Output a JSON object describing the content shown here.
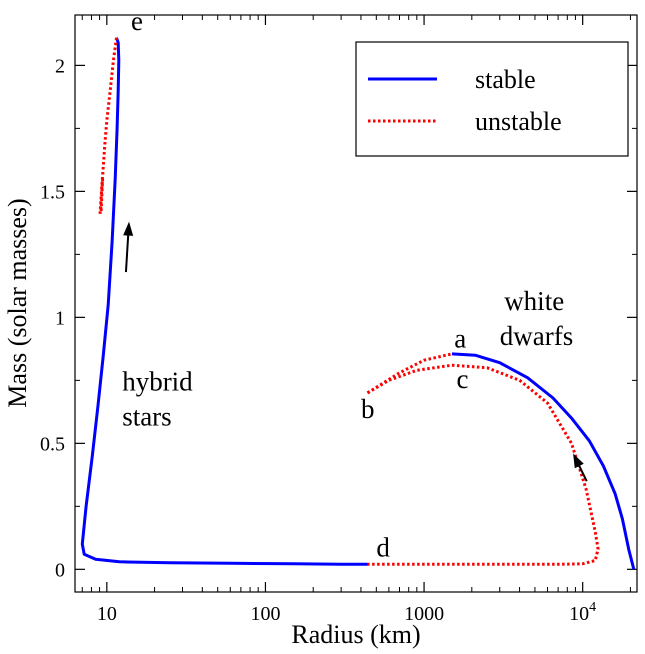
{
  "chart_data": {
    "type": "line",
    "title": "",
    "xlabel": "Radius (km)",
    "ylabel": "Mass (solar masses)",
    "xscale": "log",
    "xlim": [
      6.3,
      22000
    ],
    "ylim": [
      -0.09,
      2.2
    ],
    "grid": false,
    "legend_placement": "top-right",
    "xtick_labels": [
      "10",
      "100",
      "1000",
      "10^4"
    ],
    "xticks": [
      10,
      100,
      1000,
      10000
    ],
    "ytick_labels": [
      "0",
      "0.5",
      "1",
      "1.5",
      "2"
    ],
    "yticks": [
      0,
      0.5,
      1,
      1.5,
      2
    ],
    "series": [
      {
        "name": "stable",
        "color": "#0000ff",
        "style": "solid",
        "segments": [
          {
            "x": [
              21000,
              19500,
              17800,
              16000,
              13500,
              11000,
              8500,
              6500,
              4500,
              3000,
              2100,
              1500
            ],
            "y": [
              0.0,
              0.08,
              0.2,
              0.3,
              0.41,
              0.51,
              0.6,
              0.68,
              0.76,
              0.82,
              0.85,
              0.855
            ]
          },
          {
            "x": [
              440,
              300,
              150,
              60,
              25,
              12,
              8.5,
              7.2,
              7.0,
              7.4,
              8.1,
              8.8,
              9.5,
              10.2,
              10.8,
              11.3,
              11.6,
              11.8,
              11.9,
              11.8,
              11.5
            ],
            "y": [
              0.02,
              0.02,
              0.022,
              0.024,
              0.026,
              0.03,
              0.04,
              0.06,
              0.1,
              0.25,
              0.45,
              0.65,
              0.85,
              1.05,
              1.3,
              1.55,
              1.75,
              1.9,
              2.02,
              2.09,
              2.11
            ]
          }
        ]
      },
      {
        "name": "unstable",
        "color": "#ff0000",
        "style": "dotted",
        "segments": [
          {
            "x": [
              440,
              700,
              1000,
              1500
            ],
            "y": [
              0.7,
              0.78,
              0.83,
              0.855
            ]
          },
          {
            "x": [
              440,
              600,
              900,
              1500,
              2500,
              4000,
              6000,
              8500,
              10500,
              12000,
              12500,
              12000,
              10000,
              7000,
              4000,
              2000,
              1000,
              600,
              440
            ],
            "y": [
              0.7,
              0.75,
              0.79,
              0.81,
              0.8,
              0.75,
              0.66,
              0.5,
              0.32,
              0.15,
              0.08,
              0.035,
              0.022,
              0.02,
              0.02,
              0.02,
              0.02,
              0.02,
              0.02
            ]
          },
          {
            "x": [
              11.5,
              11.0,
              10.5,
              10.0,
              9.7,
              9.5,
              9.3,
              9.15,
              9.2,
              9.4,
              9.25,
              9.05
            ],
            "y": [
              2.11,
              2.02,
              1.9,
              1.78,
              1.68,
              1.6,
              1.52,
              1.44,
              1.42,
              1.55,
              1.5,
              1.41
            ]
          }
        ]
      }
    ],
    "annotations": [
      {
        "text": "e",
        "x": 14.2,
        "y": 2.14
      },
      {
        "text": "a",
        "x": 1550,
        "y": 0.88
      },
      {
        "text": "b",
        "x": 400,
        "y": 0.6
      },
      {
        "text": "c",
        "x": 1600,
        "y": 0.72
      },
      {
        "text": "d",
        "x": 500,
        "y": 0.05
      },
      {
        "text": "hybrid",
        "x": 12.5,
        "y": 0.71
      },
      {
        "text": "stars",
        "x": 12.5,
        "y": 0.57
      },
      {
        "text": "white",
        "x": 3200,
        "y": 1.03
      },
      {
        "text": "dwarfs",
        "x": 3000,
        "y": 0.89
      }
    ],
    "arrows": [
      {
        "from": [
          13.2,
          1.18
        ],
        "to": [
          13.8,
          1.38
        ]
      },
      {
        "from": [
          10600,
          0.35
        ],
        "to": [
          8700,
          0.46
        ]
      }
    ]
  }
}
